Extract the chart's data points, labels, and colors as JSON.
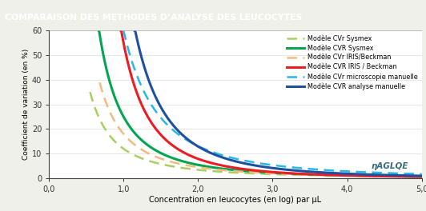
{
  "title": "COMPARAISON DES METHODES D’ANALYSE DES LEUCOCYTES",
  "title_bg": "#336b7a",
  "title_color": "#ffffff",
  "xlabel": "Concentration en leucocytes (en log) par µL",
  "ylabel": "Coefficient de variation (en %)",
  "xlim": [
    0.0,
    5.0
  ],
  "ylim": [
    0,
    60
  ],
  "xticks": [
    0.0,
    1.0,
    2.0,
    3.0,
    4.0,
    5.0
  ],
  "yticks": [
    0,
    10,
    20,
    30,
    40,
    50,
    60
  ],
  "xtick_labels": [
    "0,0",
    "1,0",
    "2,0",
    "3,0",
    "4,0",
    "5,0"
  ],
  "ytick_labels": [
    "0",
    "10",
    "20",
    "30",
    "40",
    "50",
    "60"
  ],
  "lines": [
    {
      "label": "Modèle CVr Sysmex",
      "color": "#a8d060",
      "linestyle": "dashed",
      "linewidth": 1.8,
      "scale": 12.0,
      "exponent": 1.8,
      "xstart": 0.55
    },
    {
      "label": "Modèle CVR Sysmex",
      "color": "#00a651",
      "linestyle": "solid",
      "linewidth": 2.2,
      "scale": 25.0,
      "exponent": 2.2,
      "xstart": 0.62
    },
    {
      "label": "Modèle CVr IRIS/Beckman",
      "color": "#f4b97c",
      "linestyle": "dashed",
      "linewidth": 1.8,
      "scale": 18.0,
      "exponent": 2.0,
      "xstart": 0.68
    },
    {
      "label": "Modèle CVR IRIS / Beckman",
      "color": "#ed1c24",
      "linestyle": "solid",
      "linewidth": 2.2,
      "scale": 55.0,
      "exponent": 2.8,
      "xstart": 0.82
    },
    {
      "label": "Modèle CVr microscopie manuelle",
      "color": "#29b7e8",
      "linestyle": "dashed",
      "linewidth": 1.8,
      "scale": 60.0,
      "exponent": 2.2,
      "xstart": 0.52
    },
    {
      "label": "Modèle CVR analyse manuelle",
      "color": "#1e50a0",
      "linestyle": "solid",
      "linewidth": 2.2,
      "scale": 90.0,
      "exponent": 2.8,
      "xstart": 0.72
    }
  ],
  "logo_color": "#336b7a",
  "logo_text": "ηaglqe",
  "background_color": "#f0f0eb",
  "plot_bg": "#ffffff"
}
